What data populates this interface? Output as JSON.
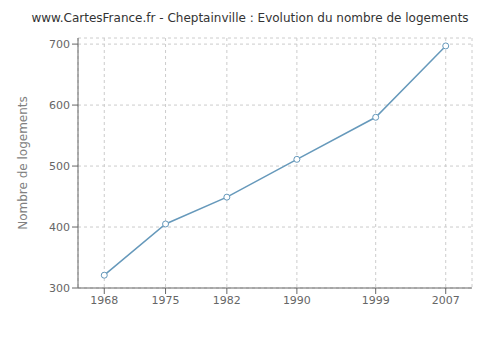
{
  "chart_data": {
    "type": "line",
    "title": "www.CartesFrance.fr - Cheptainville : Evolution du nombre de logements",
    "ylabel": "Nombre de logements",
    "x": [
      1968,
      1975,
      1982,
      1990,
      1999,
      2007
    ],
    "values": [
      321,
      405,
      449,
      511,
      580,
      697
    ],
    "color": "#6699bb",
    "marker": "circle",
    "xlim": [
      1965,
      2010
    ],
    "xticks": [
      1968,
      1975,
      1982,
      1990,
      1999,
      2007
    ],
    "ylim": [
      300,
      710
    ],
    "yticks": [
      300,
      400,
      500,
      600,
      700
    ],
    "grid": true
  }
}
